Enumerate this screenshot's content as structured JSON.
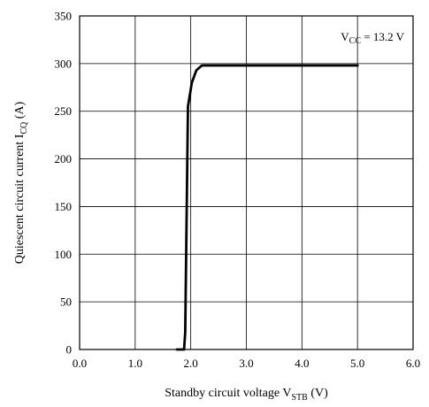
{
  "chart_data": {
    "type": "line",
    "title": "",
    "xlabel": {
      "main": "Standby circuit voltage  V",
      "sub": "STB",
      "unit": "  (V)"
    },
    "ylabel": {
      "main": "Quiescent circuit current  I",
      "sub": "CQ",
      "unit": "  (A)"
    },
    "xlim": [
      0,
      6
    ],
    "ylim": [
      0,
      350
    ],
    "xticks": [
      0,
      1,
      2,
      3,
      4,
      5,
      6
    ],
    "yticks": [
      0,
      50,
      100,
      150,
      200,
      250,
      300,
      350
    ],
    "xtick_labels": [
      "0.0",
      "1.0",
      "2.0",
      "3.0",
      "4.0",
      "5.0",
      "6.0"
    ],
    "ytick_labels": [
      "0",
      "50",
      "100",
      "150",
      "200",
      "250",
      "300",
      "350"
    ],
    "grid": true,
    "annotation": {
      "main": "V",
      "sub": "CC",
      "rest": " = 13.2 V"
    },
    "series": [
      {
        "x": [
          1.75,
          1.82,
          1.86,
          1.88,
          1.9,
          1.95,
          2.02,
          2.1,
          2.2,
          2.3,
          3.0,
          4.0,
          5.0
        ],
        "y": [
          0,
          0,
          0,
          0,
          18,
          255,
          280,
          293,
          298,
          298,
          298,
          298,
          298
        ]
      }
    ]
  }
}
